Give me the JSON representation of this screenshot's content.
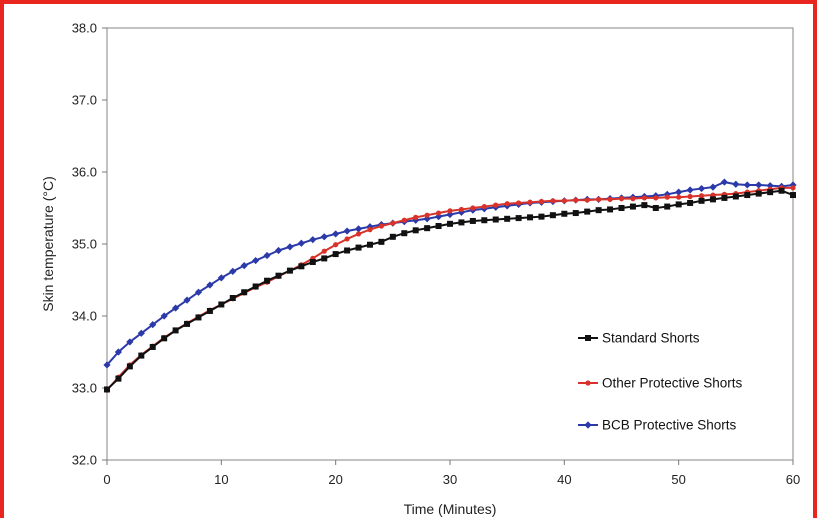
{
  "chart_data": {
    "type": "line",
    "title": "",
    "xlabel": "Time (Minutes)",
    "ylabel": "Skin temperature (°C)",
    "xlim": [
      0,
      60
    ],
    "ylim": [
      32.0,
      38.0
    ],
    "xticks": [
      0,
      10,
      20,
      30,
      40,
      50,
      60
    ],
    "yticks": [
      32.0,
      33.0,
      34.0,
      35.0,
      36.0,
      37.0,
      38.0
    ],
    "xtick_labels": [
      "0",
      "10",
      "20",
      "30",
      "40",
      "50",
      "60"
    ],
    "ytick_labels": [
      "32.0",
      "33.0",
      "34.0",
      "35.0",
      "36.0",
      "37.0",
      "38.0"
    ],
    "grid": false,
    "legend_position": "right",
    "series": [
      {
        "name": "Standard Shorts",
        "color": "#111111",
        "marker": "square",
        "x": [
          0,
          1,
          2,
          3,
          4,
          5,
          6,
          7,
          8,
          9,
          10,
          11,
          12,
          13,
          14,
          15,
          16,
          17,
          18,
          19,
          20,
          21,
          22,
          23,
          24,
          25,
          26,
          27,
          28,
          29,
          30,
          31,
          32,
          33,
          34,
          35,
          36,
          37,
          38,
          39,
          40,
          41,
          42,
          43,
          44,
          45,
          46,
          47,
          48,
          49,
          50,
          51,
          52,
          53,
          54,
          55,
          56,
          57,
          58,
          59,
          60
        ],
        "y": [
          32.98,
          33.13,
          33.3,
          33.45,
          33.57,
          33.69,
          33.8,
          33.89,
          33.98,
          34.07,
          34.16,
          34.25,
          34.33,
          34.41,
          34.49,
          34.56,
          34.63,
          34.69,
          34.75,
          34.8,
          34.86,
          34.91,
          34.95,
          34.99,
          35.03,
          35.1,
          35.15,
          35.19,
          35.22,
          35.25,
          35.28,
          35.3,
          35.32,
          35.33,
          35.34,
          35.35,
          35.36,
          35.37,
          35.38,
          35.4,
          35.42,
          35.43,
          35.45,
          35.47,
          35.48,
          35.5,
          35.52,
          35.54,
          35.5,
          35.52,
          35.55,
          35.57,
          35.6,
          35.62,
          35.64,
          35.66,
          35.68,
          35.7,
          35.72,
          35.74,
          35.68
        ]
      },
      {
        "name": "Other Protective Shorts",
        "color": "#d9322a",
        "marker": "circle",
        "x": [
          0,
          1,
          2,
          3,
          4,
          5,
          6,
          7,
          8,
          9,
          10,
          11,
          12,
          13,
          14,
          15,
          16,
          17,
          18,
          19,
          20,
          21,
          22,
          23,
          24,
          25,
          26,
          27,
          28,
          29,
          30,
          31,
          32,
          33,
          34,
          35,
          36,
          37,
          38,
          39,
          40,
          41,
          42,
          43,
          44,
          45,
          46,
          47,
          48,
          49,
          50,
          51,
          52,
          53,
          54,
          55,
          56,
          57,
          58,
          59,
          60
        ],
        "y": [
          32.97,
          33.15,
          33.32,
          33.46,
          33.58,
          33.7,
          33.8,
          33.9,
          33.99,
          34.08,
          34.16,
          34.24,
          34.32,
          34.4,
          34.47,
          34.55,
          34.63,
          34.71,
          34.8,
          34.9,
          34.99,
          35.07,
          35.14,
          35.2,
          35.25,
          35.29,
          35.33,
          35.37,
          35.4,
          35.43,
          35.46,
          35.48,
          35.5,
          35.52,
          35.54,
          35.56,
          35.57,
          35.58,
          35.59,
          35.6,
          35.6,
          35.61,
          35.61,
          35.62,
          35.62,
          35.63,
          35.63,
          35.64,
          35.64,
          35.65,
          35.65,
          35.66,
          35.67,
          35.68,
          35.69,
          35.7,
          35.72,
          35.74,
          35.76,
          35.78,
          35.78
        ]
      },
      {
        "name": "BCB Protective Shorts",
        "color": "#2b3aa8",
        "marker": "diamond",
        "x": [
          0,
          1,
          2,
          3,
          4,
          5,
          6,
          7,
          8,
          9,
          10,
          11,
          12,
          13,
          14,
          15,
          16,
          17,
          18,
          19,
          20,
          21,
          22,
          23,
          24,
          25,
          26,
          27,
          28,
          29,
          30,
          31,
          32,
          33,
          34,
          35,
          36,
          37,
          38,
          39,
          40,
          41,
          42,
          43,
          44,
          45,
          46,
          47,
          48,
          49,
          50,
          51,
          52,
          53,
          54,
          55,
          56,
          57,
          58,
          59,
          60
        ],
        "y": [
          33.32,
          33.5,
          33.64,
          33.76,
          33.88,
          34.0,
          34.11,
          34.22,
          34.33,
          34.43,
          34.53,
          34.62,
          34.7,
          34.77,
          34.84,
          34.91,
          34.96,
          35.01,
          35.06,
          35.1,
          35.14,
          35.18,
          35.21,
          35.24,
          35.27,
          35.29,
          35.31,
          35.33,
          35.35,
          35.38,
          35.41,
          35.44,
          35.47,
          35.49,
          35.51,
          35.53,
          35.55,
          35.57,
          35.58,
          35.59,
          35.6,
          35.61,
          35.62,
          35.62,
          35.63,
          35.64,
          35.65,
          35.66,
          35.67,
          35.69,
          35.72,
          35.75,
          35.77,
          35.79,
          35.86,
          35.83,
          35.82,
          35.82,
          35.81,
          35.8,
          35.82
        ]
      }
    ]
  }
}
